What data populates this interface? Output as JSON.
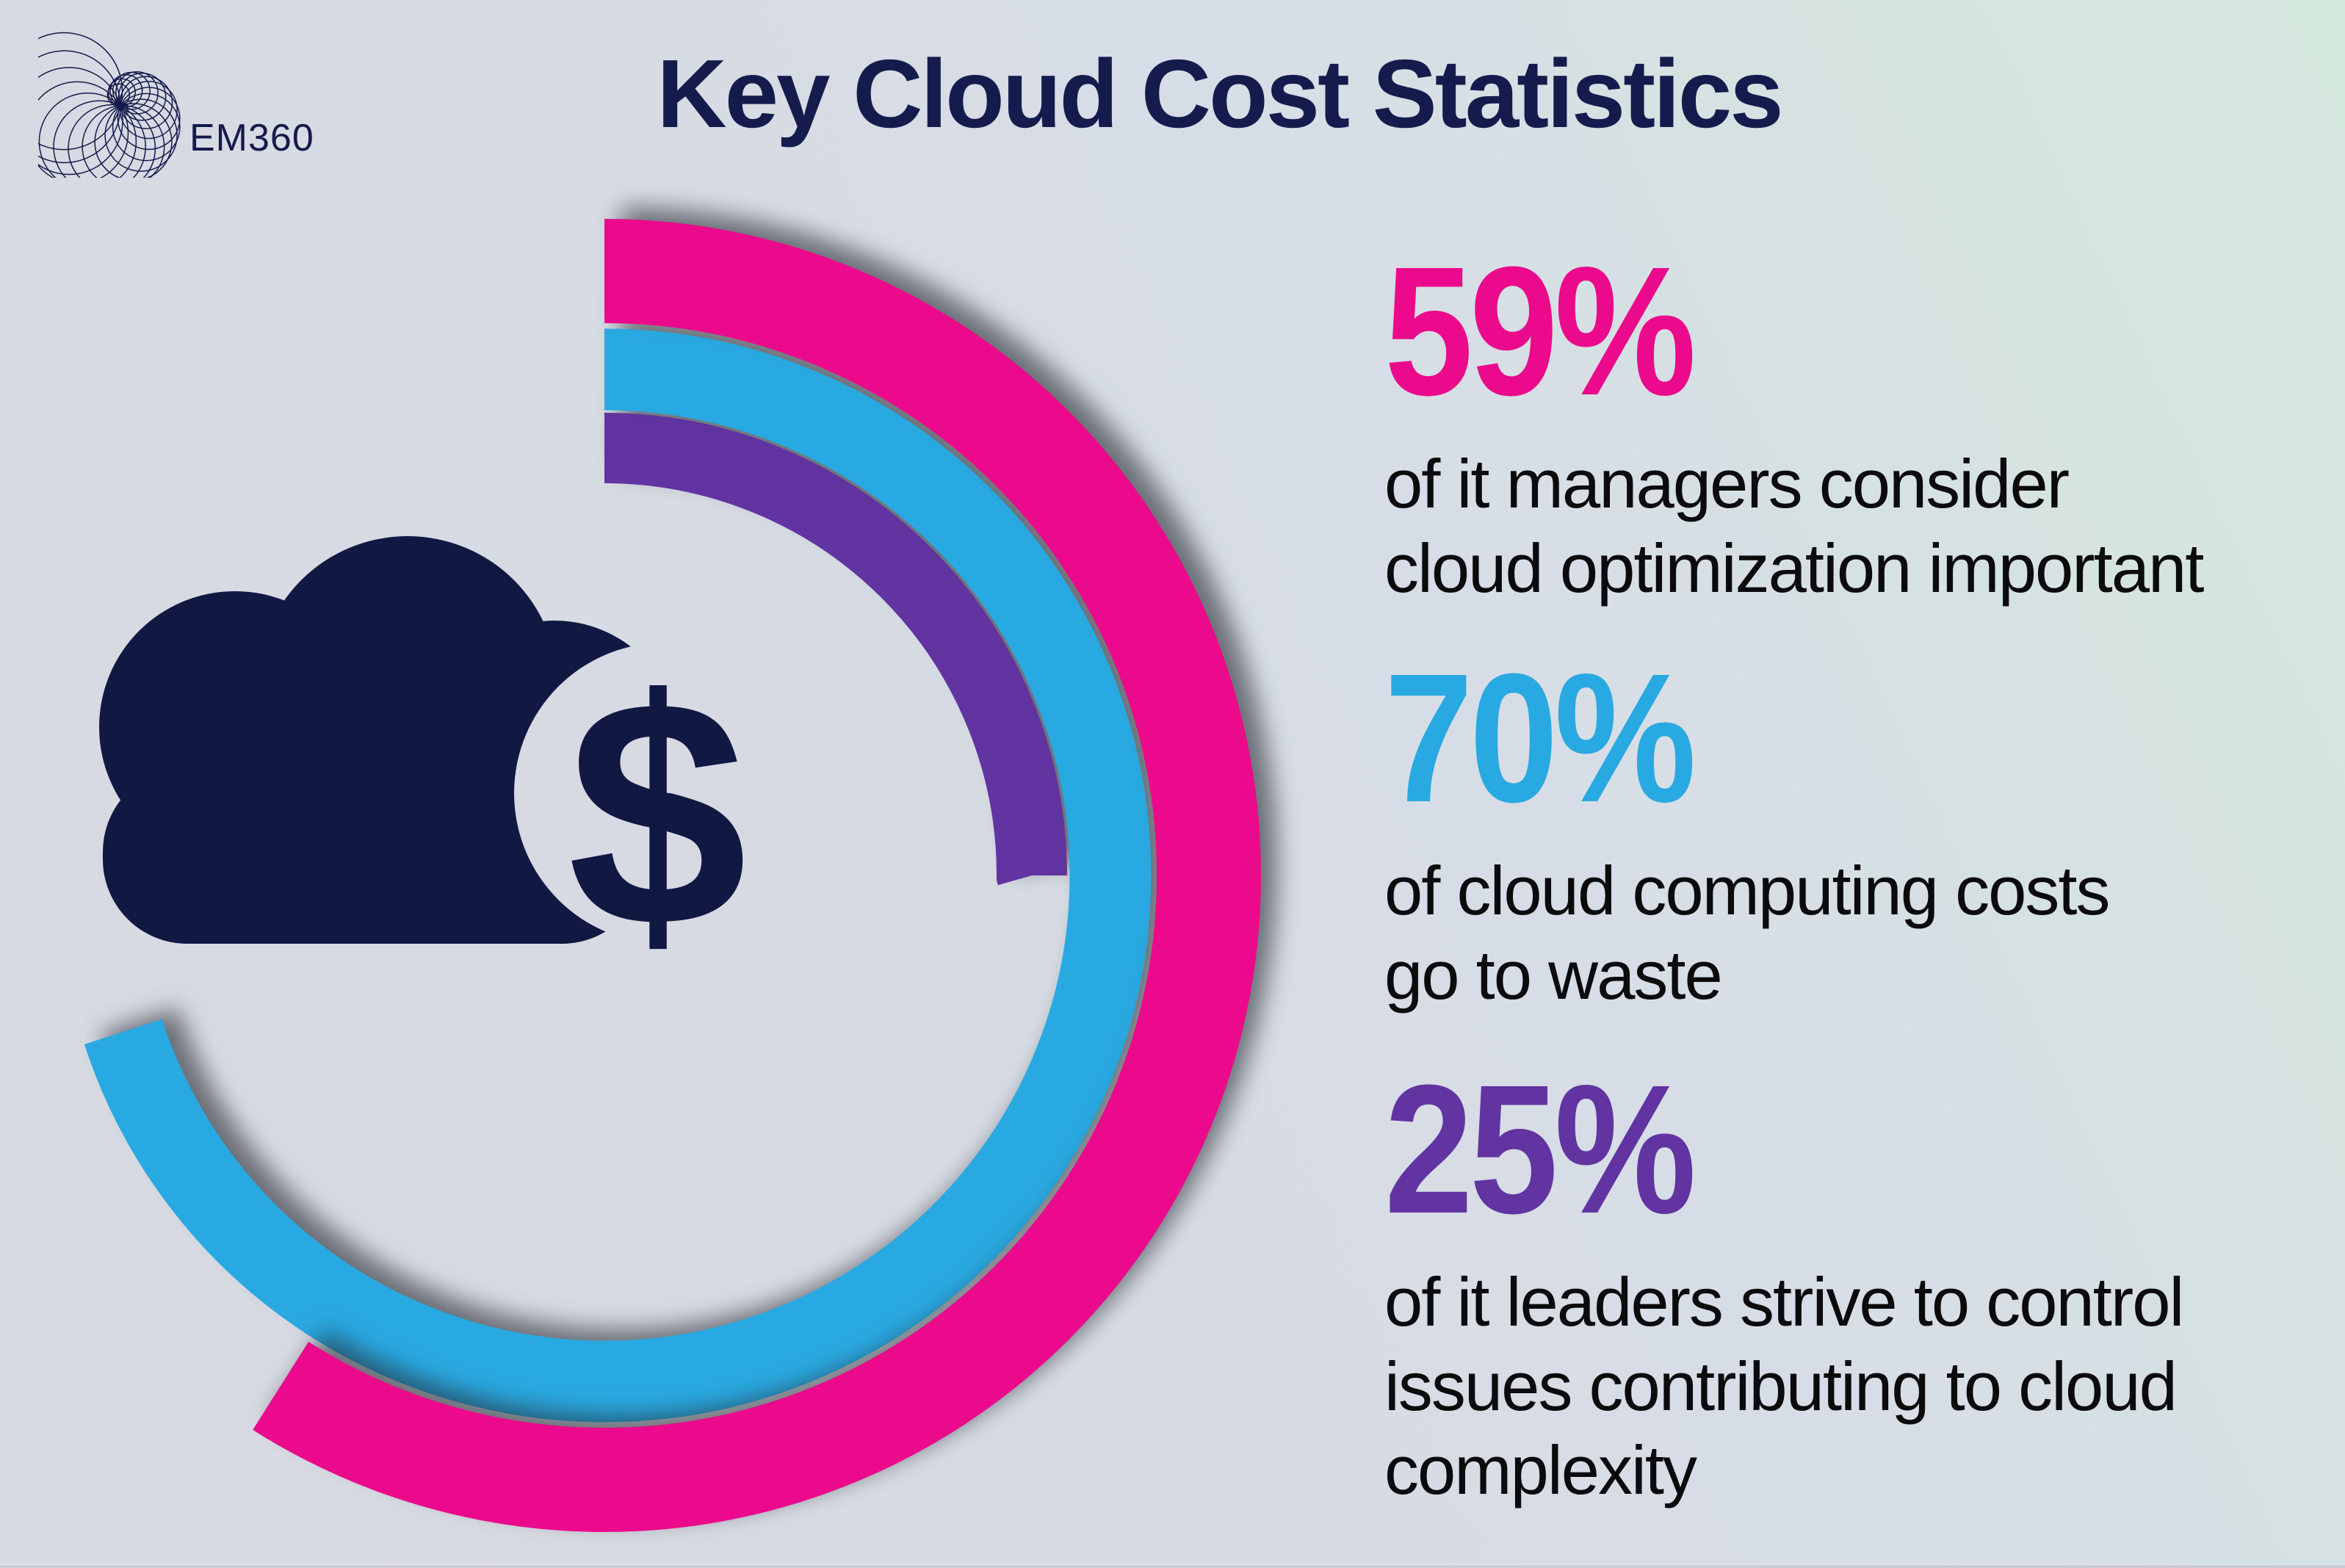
{
  "brand": {
    "name": "EM360"
  },
  "header": {
    "title": "Key Cloud Cost Statistics"
  },
  "cloud_icon": {
    "currency_symbol": "$"
  },
  "colors": {
    "navy": "#141a4b",
    "pink": "#eb0a8c",
    "blue": "#29a9e1",
    "purple": "#6134a1",
    "text_black": "#0b0b0d",
    "background_left": "#d7dae2",
    "background_top_right": "#d5e8dd"
  },
  "stats": [
    {
      "value": "59%",
      "color": "#eb0a8c",
      "lines": [
        "of it managers consider",
        "cloud optimization important"
      ]
    },
    {
      "value": "70%",
      "color": "#29a9e1",
      "lines": [
        "of cloud computing costs",
        "go to waste"
      ]
    },
    {
      "value": "25%",
      "color": "#6134a1",
      "lines": [
        "of it leaders strive to control",
        "issues contributing to cloud",
        "complexity"
      ]
    }
  ],
  "chart_data": {
    "type": "radial-bar",
    "title": "Key Cloud Cost Statistics",
    "categories": [
      "of it managers consider cloud optimization important",
      "of cloud computing costs go to waste",
      "of it leaders strive to control issues contributing to cloud complexity"
    ],
    "values": [
      59,
      70,
      25
    ],
    "colors": [
      "#eb0a8c",
      "#29a9e1",
      "#6134a1"
    ],
    "unit": "%",
    "start_angle_deg": 0,
    "direction": "clockwise",
    "rings": "outer-to-inner: pink 59, blue 70, purple 25",
    "legend_position": "right",
    "grid": false
  }
}
